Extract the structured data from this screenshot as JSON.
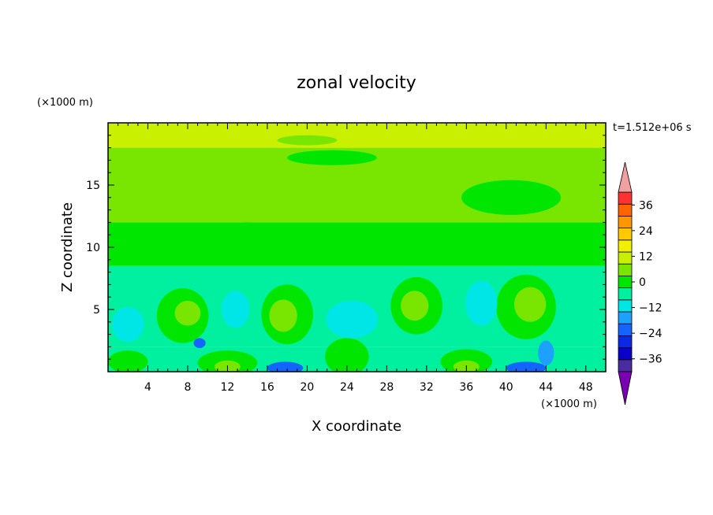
{
  "chart_data": {
    "type": "heatmap",
    "title": "zonal velocity",
    "time_label": "t=1.512e+06 s",
    "xlabel": "X coordinate",
    "ylabel": "Z coordinate",
    "x_unit": "(×1000 m)",
    "y_unit": "(×1000 m)",
    "xlim": [
      0,
      50
    ],
    "ylim": [
      0,
      20
    ],
    "x_ticks": [
      4,
      8,
      12,
      16,
      20,
      24,
      28,
      32,
      36,
      40,
      44,
      48
    ],
    "y_ticks": [
      5,
      10,
      15
    ],
    "colorbar": {
      "labels": [
        36,
        24,
        12,
        0,
        -12,
        -24,
        -36
      ],
      "levels": [
        -42,
        -36,
        -30,
        -24,
        -18,
        -12,
        -6,
        0,
        6,
        12,
        18,
        24,
        30,
        36,
        42
      ],
      "colors": [
        "#7a00b4",
        "#4a2ca0",
        "#0a00c8",
        "#0a28e6",
        "#1464ff",
        "#1ea0ff",
        "#00e6e6",
        "#00f0a0",
        "#00e600",
        "#78e600",
        "#c8f000",
        "#f0f000",
        "#ffc800",
        "#ff9600",
        "#ff6400",
        "#ff3232",
        "#f0a0a0"
      ]
    },
    "layers": [
      {
        "z_range": [
          0,
          2
        ],
        "value": -3
      },
      {
        "z_range": [
          2,
          8.5
        ],
        "value": -4
      },
      {
        "z_range": [
          8.5,
          12
        ],
        "value": 2
      },
      {
        "z_range": [
          12,
          18
        ],
        "value": 7
      },
      {
        "z_range": [
          18,
          20
        ],
        "value": 12
      }
    ],
    "regions": [
      {
        "x": 7.5,
        "z": 4.5,
        "rx": 2.6,
        "rz": 2.2,
        "value": 4
      },
      {
        "x": 8.0,
        "z": 4.7,
        "rx": 1.3,
        "rz": 1.0,
        "value": 8
      },
      {
        "x": 18.0,
        "z": 4.6,
        "rx": 2.6,
        "rz": 2.4,
        "value": 4
      },
      {
        "x": 17.6,
        "z": 4.5,
        "rx": 1.4,
        "rz": 1.3,
        "value": 8
      },
      {
        "x": 31.0,
        "z": 5.3,
        "rx": 2.6,
        "rz": 2.3,
        "value": 4
      },
      {
        "x": 30.8,
        "z": 5.3,
        "rx": 1.4,
        "rz": 1.2,
        "value": 8
      },
      {
        "x": 42.0,
        "z": 5.2,
        "rx": 3.0,
        "rz": 2.6,
        "value": 4
      },
      {
        "x": 42.4,
        "z": 5.4,
        "rx": 1.6,
        "rz": 1.4,
        "value": 8
      },
      {
        "x": 12.8,
        "z": 5.0,
        "rx": 1.4,
        "rz": 1.5,
        "value": -10
      },
      {
        "x": 24.5,
        "z": 4.2,
        "rx": 2.6,
        "rz": 1.5,
        "value": -10
      },
      {
        "x": 37.5,
        "z": 5.5,
        "rx": 1.6,
        "rz": 1.8,
        "value": -10
      },
      {
        "x": 2.0,
        "z": 3.8,
        "rx": 1.6,
        "rz": 1.4,
        "value": -10
      },
      {
        "x": 9.2,
        "z": 2.3,
        "rx": 0.6,
        "rz": 0.4,
        "value": -20
      },
      {
        "x": 2.0,
        "z": 0.8,
        "rx": 2.0,
        "rz": 0.9,
        "value": 4
      },
      {
        "x": 12.0,
        "z": 0.7,
        "rx": 3.0,
        "rz": 1.0,
        "value": 4
      },
      {
        "x": 12.0,
        "z": 0.4,
        "rx": 1.3,
        "rz": 0.5,
        "value": 8
      },
      {
        "x": 24.0,
        "z": 1.2,
        "rx": 2.2,
        "rz": 1.5,
        "value": 4
      },
      {
        "x": 36.0,
        "z": 0.8,
        "rx": 2.6,
        "rz": 1.0,
        "value": 4
      },
      {
        "x": 36.0,
        "z": 0.4,
        "rx": 1.3,
        "rz": 0.5,
        "value": 8
      },
      {
        "x": 17.8,
        "z": 0.3,
        "rx": 1.8,
        "rz": 0.5,
        "value": -20
      },
      {
        "x": 42.0,
        "z": 0.3,
        "rx": 2.0,
        "rz": 0.5,
        "value": -20
      },
      {
        "x": 44.0,
        "z": 1.5,
        "rx": 0.8,
        "rz": 1.0,
        "value": -16
      },
      {
        "x": 40.5,
        "z": 14.0,
        "rx": 5.0,
        "rz": 1.4,
        "value": 2
      },
      {
        "x": 22.5,
        "z": 17.2,
        "rx": 4.5,
        "rz": 0.6,
        "value": 4
      },
      {
        "x": 20.0,
        "z": 18.6,
        "rx": 3.0,
        "rz": 0.4,
        "value": 7
      },
      {
        "x": 14.0,
        "z": 11.2,
        "rx": 6.0,
        "rz": 0.8,
        "value": 4
      }
    ]
  }
}
